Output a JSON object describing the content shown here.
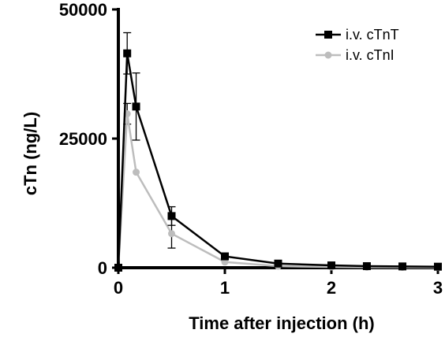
{
  "chart_data": {
    "type": "line",
    "title": "",
    "xlabel": "Time after injection (h)",
    "ylabel": "cTn (ng/L)",
    "xlim": [
      0,
      3
    ],
    "ylim": [
      0,
      50000
    ],
    "x_ticks": [
      0,
      1,
      2,
      3
    ],
    "y_ticks": [
      0,
      25000,
      50000
    ],
    "x_tick_labels": [
      "0",
      "1",
      "2",
      "3"
    ],
    "y_tick_labels": [
      "0",
      "25000",
      "50000"
    ],
    "grid": false,
    "legend_position": "top-right",
    "series": [
      {
        "name": "i.v. cTnT",
        "color": "#000000",
        "marker": "square",
        "x": [
          0,
          0.083,
          0.167,
          0.5,
          1,
          1.5,
          2,
          2.333,
          2.667,
          3
        ],
        "y": [
          0,
          41500,
          31200,
          10000,
          2200,
          800,
          450,
          300,
          250,
          200
        ],
        "error": [
          0,
          4000,
          6500,
          1800,
          300,
          0,
          0,
          0,
          0,
          0
        ]
      },
      {
        "name": "i.v. cTnI",
        "color": "#bdbdbd",
        "marker": "circle",
        "x": [
          0,
          0.083,
          0.167,
          0.5,
          1,
          1.5,
          2,
          2.333,
          2.667,
          3
        ],
        "y": [
          0,
          29800,
          18500,
          6600,
          1100,
          300,
          150,
          100,
          80,
          60
        ],
        "error": [
          0,
          2000,
          0,
          2800,
          0,
          0,
          0,
          0,
          0,
          0
        ]
      }
    ]
  }
}
